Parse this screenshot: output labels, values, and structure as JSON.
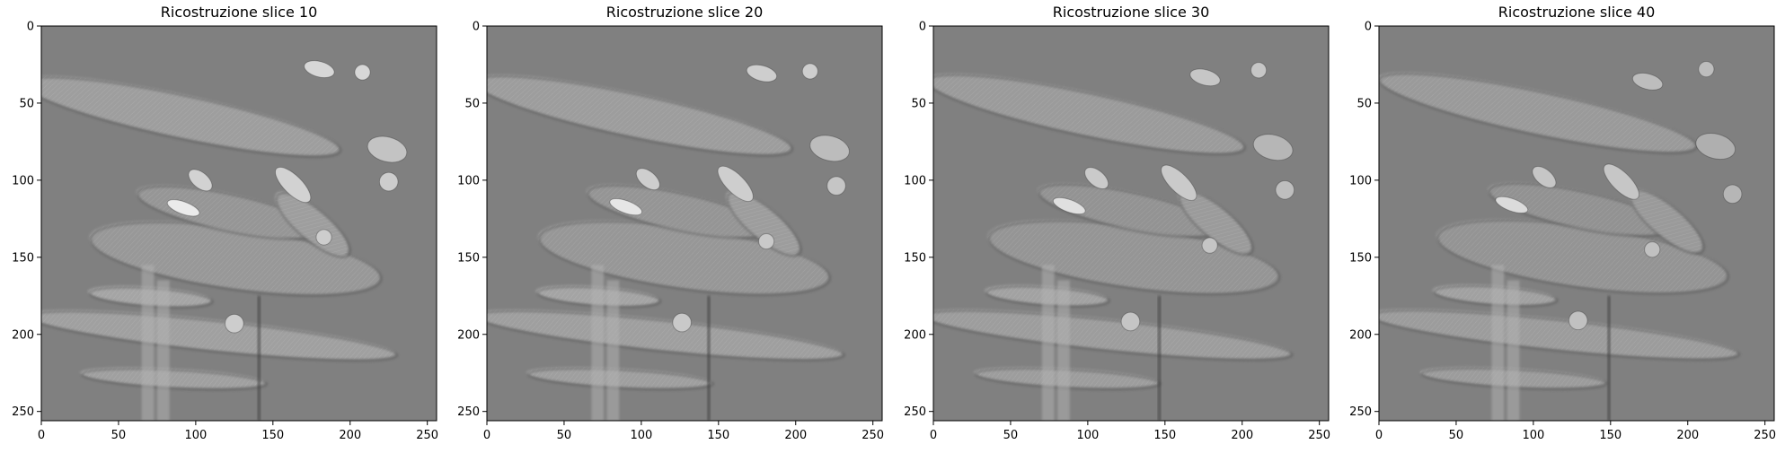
{
  "figure": {
    "panels": [
      {
        "title": "Ricostruzione slice 10"
      },
      {
        "title": "Ricostruzione slice 20"
      },
      {
        "title": "Ricostruzione slice 30"
      },
      {
        "title": "Ricostruzione slice 40"
      }
    ]
  },
  "chart_data": [
    {
      "type": "heatmap",
      "title": "Ricostruzione slice 10",
      "xlim": [
        0,
        256
      ],
      "ylim": [
        256,
        0
      ],
      "xticks": [
        0,
        50,
        100,
        150,
        200,
        250
      ],
      "yticks": [
        0,
        50,
        100,
        150,
        200,
        250
      ],
      "grid": false,
      "colormap": "gray",
      "slice": 10
    },
    {
      "type": "heatmap",
      "title": "Ricostruzione slice 20",
      "xlim": [
        0,
        256
      ],
      "ylim": [
        256,
        0
      ],
      "xticks": [
        0,
        50,
        100,
        150,
        200,
        250
      ],
      "yticks": [
        0,
        50,
        100,
        150,
        200,
        250
      ],
      "grid": false,
      "colormap": "gray",
      "slice": 20
    },
    {
      "type": "heatmap",
      "title": "Ricostruzione slice 30",
      "xlim": [
        0,
        256
      ],
      "ylim": [
        256,
        0
      ],
      "xticks": [
        0,
        50,
        100,
        150,
        200,
        250
      ],
      "yticks": [
        0,
        50,
        100,
        150,
        200,
        250
      ],
      "grid": false,
      "colormap": "gray",
      "slice": 30
    },
    {
      "type": "heatmap",
      "title": "Ricostruzione slice 40",
      "xlim": [
        0,
        256
      ],
      "ylim": [
        256,
        0
      ],
      "xticks": [
        0,
        50,
        100,
        150,
        200,
        250
      ],
      "yticks": [
        0,
        50,
        100,
        150,
        200,
        250
      ],
      "grid": false,
      "colormap": "gray",
      "slice": 40
    }
  ]
}
